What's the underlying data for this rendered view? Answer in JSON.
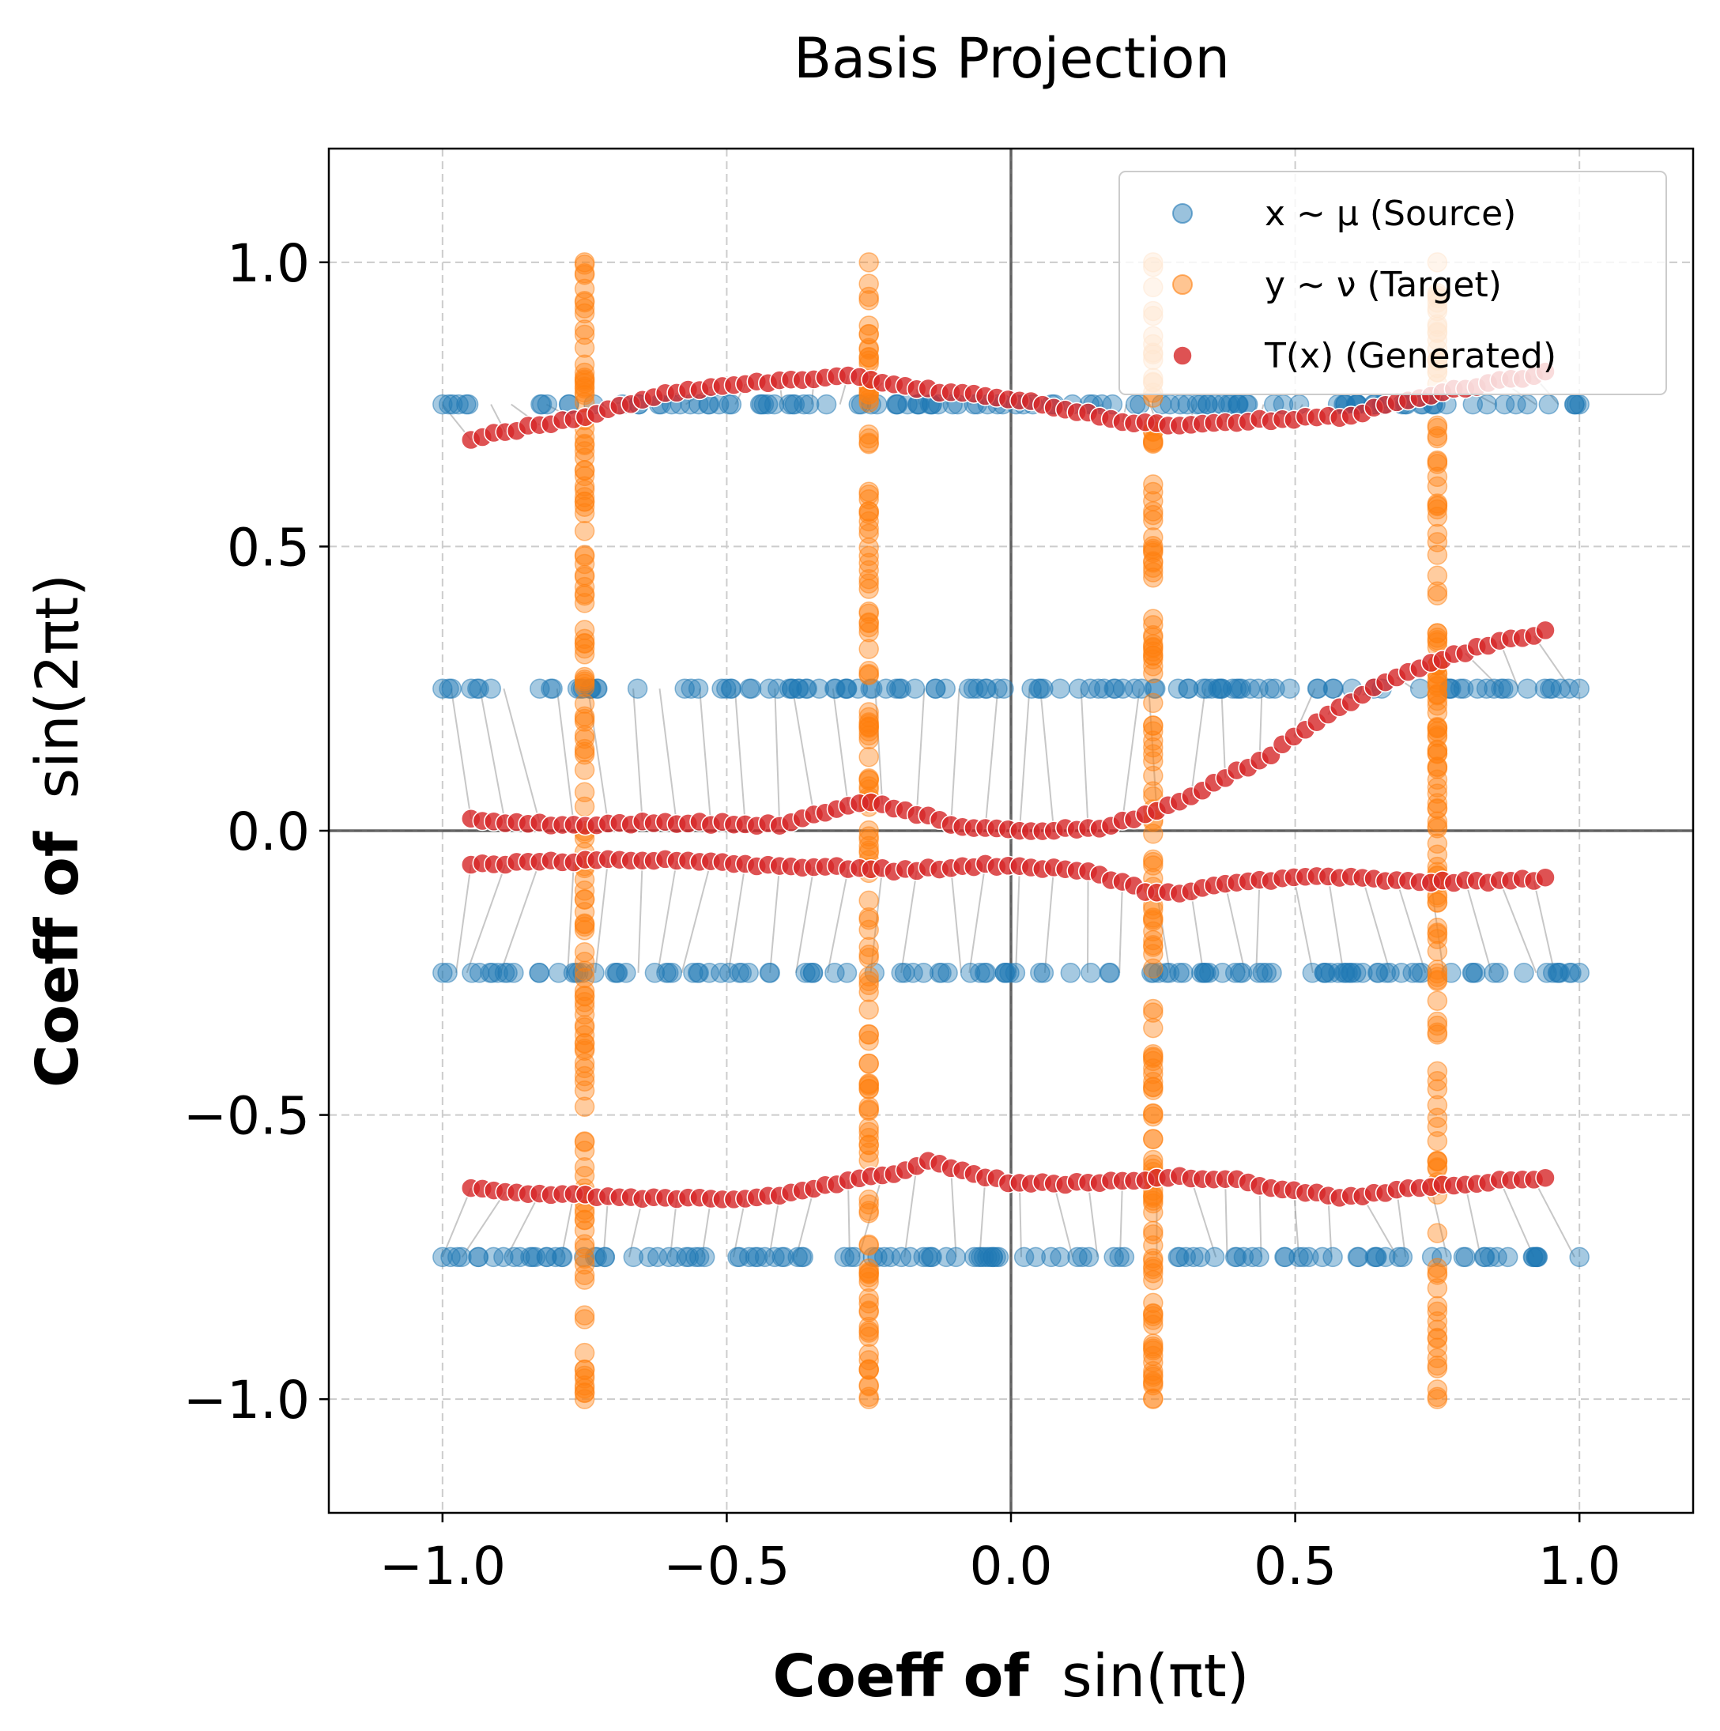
{
  "chart_data": {
    "type": "scatter",
    "title": "Basis Projection",
    "xlabel_bold": "Coeff of",
    "xlabel_math": "sin(πt)",
    "ylabel_bold": "Coeff of",
    "ylabel_math": "sin(2πt)",
    "xlim": [
      -1.2,
      1.2
    ],
    "ylim": [
      -1.2,
      1.2
    ],
    "xticks": [
      -1.0,
      -0.5,
      0.0,
      0.5,
      1.0
    ],
    "yticks": [
      -1.0,
      -0.5,
      0.0,
      0.5,
      1.0
    ],
    "xtick_labels": [
      "−1.0",
      "−0.5",
      "0.0",
      "0.5",
      "1.0"
    ],
    "ytick_labels": [
      "−1.0",
      "−0.5",
      "0.0",
      "0.5",
      "1.0"
    ],
    "grid": true,
    "legend_position": "top-right",
    "colors": {
      "source": "#1f77b4",
      "target": "#ff7f0e",
      "generated": "#d62728"
    },
    "series": [
      {
        "name": "x ~ μ (Source)",
        "key": "source",
        "description": "horizontal bands at y = ±0.25, ±0.75, x from -1 to 1",
        "rows_y": [
          0.75,
          0.25,
          -0.25,
          -0.75
        ],
        "x_range": [
          -1.0,
          1.0
        ]
      },
      {
        "name": "y ~ ν (Target)",
        "key": "target",
        "description": "vertical bands at x = ±0.25, ±0.75, y from -1 to 1",
        "cols_x": [
          -0.75,
          -0.25,
          0.25,
          0.75
        ],
        "y_range": [
          -1.0,
          1.0
        ]
      },
      {
        "name": "T(x) (Generated)",
        "key": "generated",
        "curves": [
          {
            "from_row": 0.75,
            "x": [
              -0.95,
              -0.85,
              -0.75,
              -0.6,
              -0.5,
              -0.4,
              -0.3,
              -0.25,
              -0.18,
              -0.1,
              0.0,
              0.1,
              0.2,
              0.3,
              0.4,
              0.5,
              0.6,
              0.7,
              0.8,
              0.94
            ],
            "y": [
              0.69,
              0.71,
              0.73,
              0.77,
              0.785,
              0.79,
              0.8,
              0.795,
              0.78,
              0.77,
              0.76,
              0.74,
              0.72,
              0.71,
              0.72,
              0.725,
              0.73,
              0.76,
              0.78,
              0.805
            ]
          },
          {
            "from_row": 0.25,
            "x": [
              -0.95,
              -0.8,
              -0.6,
              -0.4,
              -0.3,
              -0.25,
              -0.18,
              -0.1,
              0.0,
              0.15,
              0.25,
              0.35,
              0.45,
              0.55,
              0.65,
              0.75,
              0.85,
              0.94
            ],
            "y": [
              0.02,
              0.01,
              0.015,
              0.01,
              0.04,
              0.05,
              0.035,
              0.01,
              0.0,
              0.005,
              0.03,
              0.08,
              0.13,
              0.2,
              0.26,
              0.3,
              0.33,
              0.35
            ]
          },
          {
            "from_row": -0.25,
            "x": [
              -0.95,
              -0.8,
              -0.6,
              -0.45,
              -0.3,
              -0.2,
              -0.1,
              -0.05,
              0.05,
              0.15,
              0.25,
              0.3,
              0.4,
              0.55,
              0.7,
              0.8,
              0.94
            ],
            "y": [
              -0.06,
              -0.055,
              -0.05,
              -0.06,
              -0.065,
              -0.07,
              -0.065,
              -0.06,
              -0.065,
              -0.075,
              -0.11,
              -0.11,
              -0.09,
              -0.08,
              -0.09,
              -0.09,
              -0.085
            ]
          },
          {
            "from_row": -0.75,
            "x": [
              -0.95,
              -0.8,
              -0.65,
              -0.5,
              -0.4,
              -0.3,
              -0.2,
              -0.14,
              -0.08,
              0.0,
              0.1,
              0.2,
              0.3,
              0.4,
              0.5,
              0.6,
              0.7,
              0.8,
              0.94
            ],
            "y": [
              -0.63,
              -0.64,
              -0.645,
              -0.65,
              -0.64,
              -0.62,
              -0.6,
              -0.58,
              -0.6,
              -0.62,
              -0.62,
              -0.615,
              -0.61,
              -0.615,
              -0.635,
              -0.645,
              -0.63,
              -0.62,
              -0.61
            ]
          }
        ]
      }
    ]
  }
}
